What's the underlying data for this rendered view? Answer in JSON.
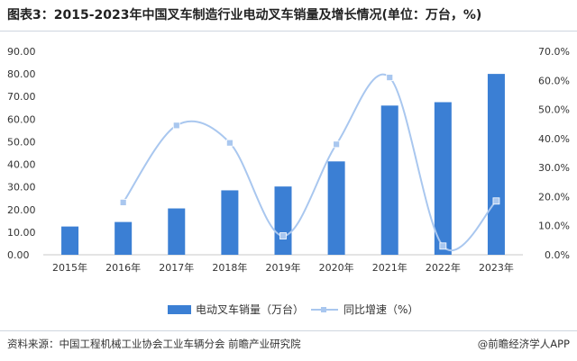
{
  "header": {
    "title": "图表3：2015-2023年中国叉车制造行业电动叉车销量及增长情况(单位：万台，%)"
  },
  "footer": {
    "source": "资料来源：中国工程机械工业协会工业车辆分会 前瞻产业研究院",
    "brand": "@前瞻经济学人APP"
  },
  "colors": {
    "bar": "#3b7fd4",
    "line": "#a9c7ef",
    "marker": "#a9c7ef"
  },
  "chart_data": {
    "type": "bar+line",
    "categories": [
      "2015年",
      "2016年",
      "2017年",
      "2018年",
      "2019年",
      "2020年",
      "2021年",
      "2022年",
      "2023年"
    ],
    "series": [
      {
        "name": "电动叉车销量（万台）",
        "type": "bar",
        "axis": "left",
        "values": [
          12.5,
          14.5,
          20.5,
          28.5,
          30.2,
          41.3,
          66.0,
          67.5,
          80.0
        ]
      },
      {
        "name": "同比增速（%）",
        "type": "line",
        "axis": "right",
        "values": [
          null,
          18.0,
          44.5,
          38.5,
          6.5,
          38.0,
          61.0,
          3.0,
          18.5
        ]
      }
    ],
    "y_left": {
      "min": 0,
      "max": 90,
      "ticks": [
        "0.00",
        "10.00",
        "20.00",
        "30.00",
        "40.00",
        "50.00",
        "60.00",
        "70.00",
        "80.00",
        "90.00"
      ]
    },
    "y_right": {
      "min": 0,
      "max": 70,
      "ticks": [
        "0.0%",
        "10.0%",
        "20.0%",
        "30.0%",
        "40.0%",
        "50.0%",
        "60.0%",
        "70.0%"
      ]
    },
    "legend_position": "bottom-center",
    "grid": false
  }
}
